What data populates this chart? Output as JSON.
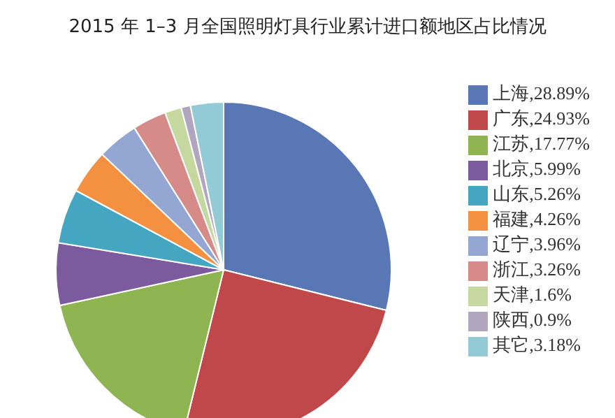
{
  "chart_data": {
    "type": "pie",
    "title": "2015 年 1–3 月全国照明灯具行业累计进口额地区占比情况",
    "categories": [
      "上海,28.89%",
      "广东,24.93%",
      "江苏,17.77%",
      "北京,5.99%",
      "山东,5.26%",
      "福建,4.26%",
      "辽宁,3.96%",
      "浙江,3.26%",
      "天津,1.6%",
      "陕西,0.9%",
      "其它,3.18%"
    ],
    "values": [
      28.89,
      24.93,
      17.77,
      5.99,
      5.26,
      4.26,
      3.96,
      3.26,
      1.6,
      0.9,
      3.18
    ],
    "colors": [
      "#5a77b5",
      "#c0484a",
      "#8fb552",
      "#7c5a9e",
      "#45a6c2",
      "#f39140",
      "#93a7d2",
      "#d78b88",
      "#c5d8a0",
      "#b0a6bf",
      "#92cbd6"
    ],
    "legend": "right"
  }
}
